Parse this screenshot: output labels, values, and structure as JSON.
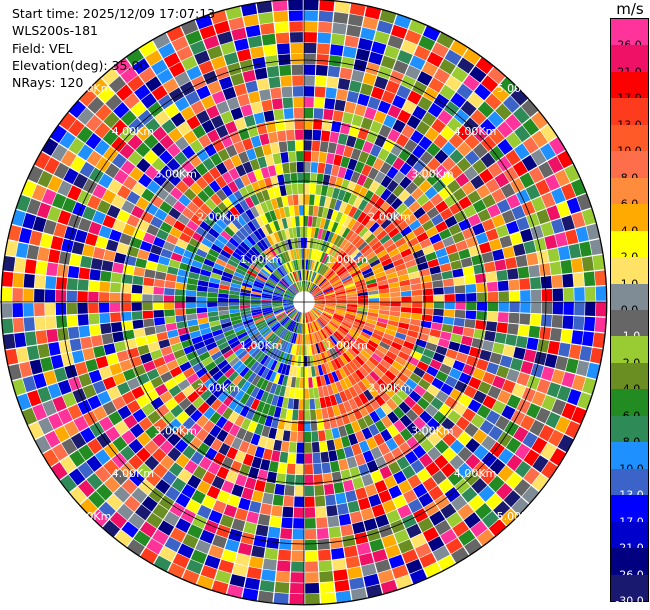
{
  "header": {
    "start_time": "Start time: 2025/12/09 17:07:13",
    "station": "WLS200s-181",
    "field": "Field: VEL",
    "elevation": "Elevation(deg): 35.00",
    "nrays": "NRays: 120"
  },
  "colorbar": {
    "unit": "m/s",
    "entries": [
      {
        "label": "26.0",
        "color": "#ff3399",
        "text": "#000000"
      },
      {
        "label": "21.0",
        "color": "#ee1166",
        "text": "#000000"
      },
      {
        "label": "17.0",
        "color": "#ff0000",
        "text": "#000000"
      },
      {
        "label": "13.0",
        "color": "#ff3b1e",
        "text": "#000000"
      },
      {
        "label": "10.0",
        "color": "#ff5a28",
        "text": "#000000"
      },
      {
        "label": "8.0",
        "color": "#ff6e4a",
        "text": "#000000"
      },
      {
        "label": "6.0",
        "color": "#ff8c3c",
        "text": "#000000"
      },
      {
        "label": "4.0",
        "color": "#ffaa00",
        "text": "#000000"
      },
      {
        "label": "2.0",
        "color": "#ffff00",
        "text": "#000000"
      },
      {
        "label": "1.0",
        "color": "#ffe266",
        "text": "#000000"
      },
      {
        "label": "0.0",
        "color": "#7f8c95",
        "text": "#000000"
      },
      {
        "label": "-1.0",
        "color": "#666666",
        "text": "#ffffff"
      },
      {
        "label": "-2.0",
        "color": "#99cc33",
        "text": "#000000"
      },
      {
        "label": "-4.0",
        "color": "#6b8e23",
        "text": "#000000"
      },
      {
        "label": "-6.0",
        "color": "#228b22",
        "text": "#000000"
      },
      {
        "label": "-8.0",
        "color": "#2e8b57",
        "text": "#000000"
      },
      {
        "label": "-10.0",
        "color": "#1e90ff",
        "text": "#000000"
      },
      {
        "label": "-13.0",
        "color": "#3c64c8",
        "text": "#ffffff"
      },
      {
        "label": "-17.0",
        "color": "#0000ff",
        "text": "#ffffff"
      },
      {
        "label": "-21.0",
        "color": "#0000cd",
        "text": "#ffffff"
      },
      {
        "label": "-26.0",
        "color": "#000080",
        "text": "#ffffff"
      },
      {
        "label": "-30.0",
        "color": "#191970",
        "text": "#ffffff"
      }
    ]
  },
  "range_rings": {
    "labels": [
      "1.00Km",
      "2.00Km",
      "3.00Km",
      "4.00Km",
      "5.00Km"
    ]
  }
}
